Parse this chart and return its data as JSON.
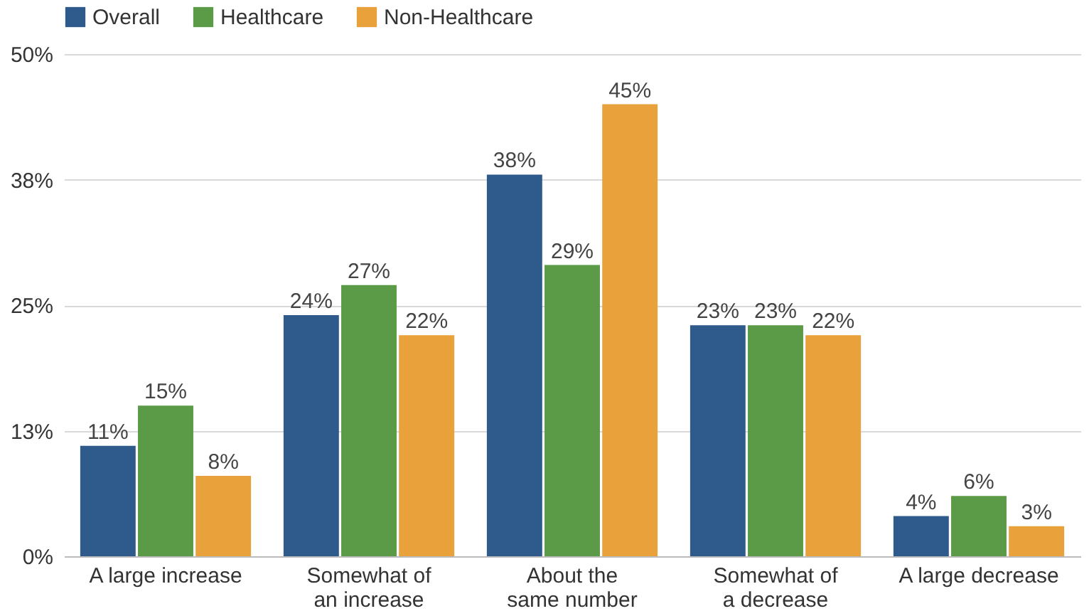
{
  "chart_data": {
    "type": "bar",
    "categories": [
      "A large increase",
      "Somewhat of\nan increase",
      "About the\nsame number",
      "Somewhat of\na decrease",
      "A large decrease"
    ],
    "series": [
      {
        "name": "Overall",
        "color": "#2e5a8c",
        "values": [
          11,
          24,
          38,
          23,
          4
        ],
        "value_labels": [
          "11%",
          "24%",
          "38%",
          "23%",
          "4%"
        ]
      },
      {
        "name": "Healthcare",
        "color": "#5b9a47",
        "values": [
          15,
          27,
          29,
          23,
          6
        ],
        "value_labels": [
          "15%",
          "27%",
          "29%",
          "23%",
          "6%"
        ]
      },
      {
        "name": "Non-Healthcare",
        "color": "#e9a23b",
        "values": [
          8,
          22,
          45,
          22,
          3
        ],
        "value_labels": [
          "8%",
          "22%",
          "45%",
          "22%",
          "3%"
        ]
      }
    ],
    "ylim": [
      0,
      50
    ],
    "yticks": [
      {
        "value": 0,
        "label": "0%"
      },
      {
        "value": 12.5,
        "label": "13%"
      },
      {
        "value": 25,
        "label": "25%"
      },
      {
        "value": 37.5,
        "label": "38%"
      },
      {
        "value": 50,
        "label": "50%"
      }
    ],
    "grid": "y",
    "legend": "top"
  }
}
